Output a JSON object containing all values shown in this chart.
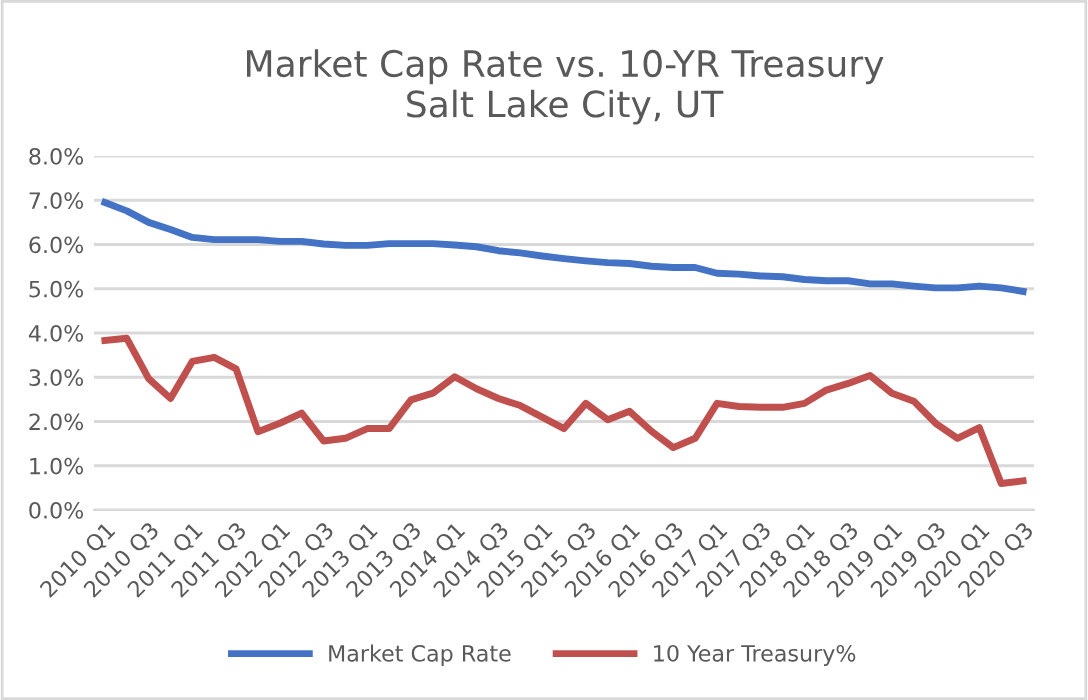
{
  "chart_data": {
    "type": "line",
    "title": "Market Cap Rate vs. 10-YR Treasury\nSalt Lake City, UT",
    "categories": [
      "2010 Q1",
      null,
      "2010 Q3",
      null,
      "2011 Q1",
      null,
      "2011 Q3",
      null,
      "2012 Q1",
      null,
      "2012 Q3",
      null,
      "2013 Q1",
      null,
      "2013 Q3",
      null,
      "2014 Q1",
      null,
      "2014 Q3",
      null,
      "2015 Q1",
      null,
      "2015 Q3",
      null,
      "2016 Q1",
      null,
      "2016 Q3",
      null,
      "2017 Q1",
      null,
      "2017 Q3",
      null,
      "2018 Q1",
      null,
      "2018 Q3",
      null,
      "2019 Q1",
      null,
      "2019 Q3",
      null,
      "2020 Q1",
      null,
      "2020 Q3"
    ],
    "series": [
      {
        "name": "Market Cap Rate",
        "color": "#4472c4",
        "values": [
          6.95,
          6.76,
          6.5,
          6.34,
          6.16,
          6.11,
          6.11,
          6.11,
          6.07,
          6.07,
          6.01,
          5.98,
          5.98,
          6.02,
          6.02,
          6.02,
          5.99,
          5.95,
          5.86,
          5.81,
          5.74,
          5.68,
          5.63,
          5.59,
          5.57,
          5.51,
          5.48,
          5.48,
          5.35,
          5.33,
          5.29,
          5.27,
          5.21,
          5.18,
          5.18,
          5.11,
          5.11,
          5.06,
          5.02,
          5.02,
          5.06,
          5.02,
          4.94
        ]
      },
      {
        "name": "10 Year Treasury%",
        "color": "#c0504d",
        "values": [
          3.83,
          3.88,
          2.97,
          2.52,
          3.36,
          3.45,
          3.19,
          1.77,
          1.96,
          2.19,
          1.56,
          1.62,
          1.84,
          1.84,
          2.49,
          2.64,
          3.01,
          2.74,
          2.52,
          2.36,
          2.1,
          1.84,
          2.41,
          2.04,
          2.23,
          1.78,
          1.41,
          1.62,
          2.41,
          2.34,
          2.32,
          2.32,
          2.41,
          2.71,
          2.86,
          3.04,
          2.64,
          2.46,
          1.96,
          1.62,
          1.86,
          0.6,
          0.66
        ]
      }
    ],
    "ylim": [
      0,
      8
    ],
    "yticks": [
      {
        "value": 0,
        "label": "0.0%"
      },
      {
        "value": 1,
        "label": "1.0%"
      },
      {
        "value": 2,
        "label": "2.0%"
      },
      {
        "value": 3,
        "label": "3.0%"
      },
      {
        "value": 4,
        "label": "4.0%"
      },
      {
        "value": 5,
        "label": "5.0%"
      },
      {
        "value": 6,
        "label": "6.0%"
      },
      {
        "value": 7,
        "label": "7.0%"
      },
      {
        "value": 8,
        "label": "8.0%"
      }
    ],
    "grid": "y",
    "legend": "bottom",
    "marker": "none",
    "line_style": "solid"
  }
}
